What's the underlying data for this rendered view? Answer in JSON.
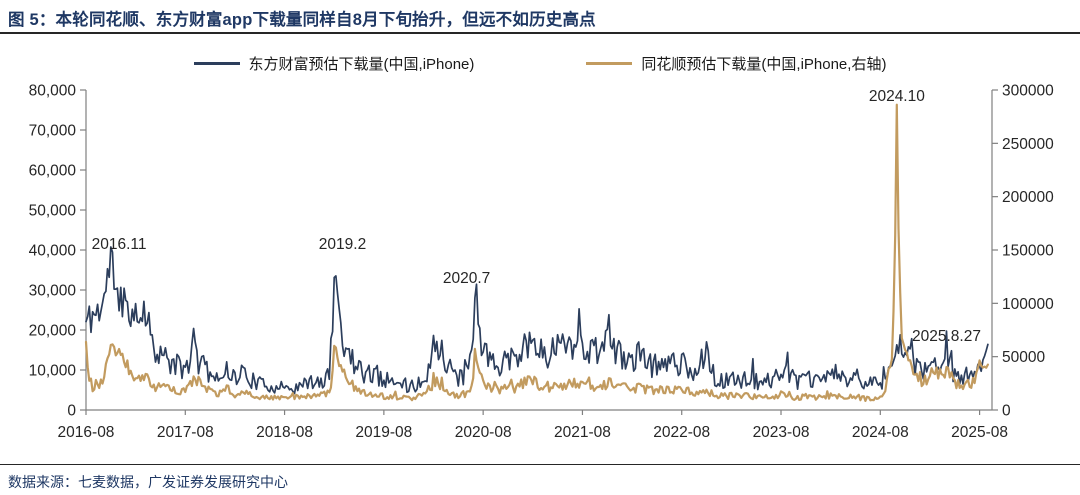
{
  "figure_title": "图 5：本轮同花顺、东方财富app下载量同样自8月下旬抬升，但远不如历史高点",
  "source_note": "数据来源：七麦数据，广发证券发展研究中心",
  "colors": {
    "title_navy": "#1f3864",
    "line_navy": "#2c3e5c",
    "line_gold": "#c29b5f",
    "axis_gray": "#808080",
    "tick_text": "#262626"
  },
  "chart_data": {
    "type": "line",
    "legend_position": "top",
    "grid": false,
    "x_months": [
      "2016-08",
      "2016-09",
      "2016-10",
      "2016-11",
      "2016-12",
      "2017-01",
      "2017-02",
      "2017-03",
      "2017-04",
      "2017-05",
      "2017-06",
      "2017-07",
      "2017-08",
      "2017-09",
      "2017-10",
      "2017-11",
      "2017-12",
      "2018-01",
      "2018-02",
      "2018-03",
      "2018-04",
      "2018-05",
      "2018-06",
      "2018-07",
      "2018-08",
      "2018-09",
      "2018-10",
      "2018-11",
      "2018-12",
      "2019-01",
      "2019-02",
      "2019-03",
      "2019-04",
      "2019-05",
      "2019-06",
      "2019-07",
      "2019-08",
      "2019-09",
      "2019-10",
      "2019-11",
      "2019-12",
      "2020-01",
      "2020-02",
      "2020-03",
      "2020-04",
      "2020-05",
      "2020-06",
      "2020-07",
      "2020-08",
      "2020-09",
      "2020-10",
      "2020-11",
      "2020-12",
      "2021-01",
      "2021-02",
      "2021-03",
      "2021-04",
      "2021-05",
      "2021-06",
      "2021-07",
      "2021-08",
      "2021-09",
      "2021-10",
      "2021-11",
      "2021-12",
      "2022-01",
      "2022-02",
      "2022-03",
      "2022-04",
      "2022-05",
      "2022-06",
      "2022-07",
      "2022-08",
      "2022-09",
      "2022-10",
      "2022-11",
      "2022-12",
      "2023-01",
      "2023-02",
      "2023-03",
      "2023-04",
      "2023-05",
      "2023-06",
      "2023-07",
      "2023-08",
      "2023-09",
      "2023-10",
      "2023-11",
      "2023-12",
      "2024-01",
      "2024-02",
      "2024-03",
      "2024-04",
      "2024-05",
      "2024-06",
      "2024-07",
      "2024-08",
      "2024-09",
      "2024-10",
      "2024-11",
      "2024-12",
      "2025-01",
      "2025-02",
      "2025-03",
      "2025-04",
      "2025-05",
      "2025-06",
      "2025-07",
      "2025-08",
      "2025-09"
    ],
    "x_tick_labels": [
      "2016-08",
      "2017-08",
      "2018-08",
      "2019-08",
      "2020-08",
      "2021-08",
      "2022-08",
      "2023-08",
      "2024-08",
      "2025-08"
    ],
    "left_axis": {
      "min": 0,
      "max": 80000,
      "step": 10000,
      "tick_labels": [
        "0",
        "10,000",
        "20,000",
        "30,000",
        "40,000",
        "50,000",
        "60,000",
        "70,000",
        "80,000"
      ]
    },
    "right_axis": {
      "min": 0,
      "max": 300000,
      "step": 50000,
      "tick_labels": [
        "0",
        "50000",
        "100000",
        "150000",
        "200000",
        "250000",
        "300000"
      ]
    },
    "series": [
      {
        "name": "东方财富预估下载量(中国,iPhone)",
        "axis": "left",
        "color": "#2c3e5c",
        "seed": 11,
        "noise_amp": 0.28,
        "noise_cap": 16000,
        "floor": 1800,
        "values": [
          22000,
          24000,
          26000,
          37000,
          28000,
          27000,
          22000,
          26000,
          18000,
          14000,
          12000,
          11000,
          10000,
          15000,
          11000,
          9000,
          8000,
          10500,
          8000,
          9500,
          7500,
          6500,
          6000,
          5500,
          6000,
          5500,
          6000,
          7000,
          6500,
          8000,
          35000,
          18000,
          13000,
          10000,
          9000,
          8500,
          8000,
          7000,
          6000,
          5500,
          6500,
          8000,
          15000,
          16000,
          10000,
          7000,
          10000,
          28000,
          14000,
          12000,
          11000,
          12000,
          13000,
          17000,
          18000,
          14000,
          14500,
          16000,
          17500,
          17000,
          16000,
          15000,
          14000,
          21500,
          14000,
          13500,
          12500,
          13500,
          11500,
          11000,
          12000,
          12500,
          11500,
          10000,
          9500,
          17000,
          8000,
          7000,
          7500,
          7200,
          8200,
          7200,
          6800,
          7800,
          9500,
          8500,
          7000,
          8000,
          7000,
          7500,
          10000,
          8500,
          7200,
          8800,
          7000,
          6500,
          6800,
          9000,
          19500,
          14000,
          11000,
          9000,
          10000,
          11000,
          12500,
          8500,
          8000,
          9000,
          12500,
          13000
        ]
      },
      {
        "name": "同花顺预估下载量(中国,iPhone,右轴)",
        "axis": "right",
        "color": "#c29b5f",
        "seed": 23,
        "noise_amp": 0.22,
        "noise_cap": 26000,
        "floor": 5000,
        "values": [
          62000,
          22000,
          28000,
          58000,
          52000,
          42000,
          28000,
          33000,
          24000,
          20000,
          22000,
          18000,
          20000,
          30000,
          24000,
          18000,
          15000,
          20000,
          15000,
          17000,
          14000,
          13000,
          12000,
          11000,
          12000,
          11000,
          12500,
          13500,
          12500,
          16000,
          62000,
          35000,
          24000,
          18000,
          15000,
          14000,
          13000,
          12000,
          11000,
          10500,
          12000,
          14000,
          26000,
          24000,
          16000,
          13000,
          16000,
          52000,
          26000,
          21000,
          19000,
          20000,
          21000,
          26000,
          27000,
          23000,
          22000,
          23000,
          24000,
          25000,
          24000,
          23000,
          22000,
          25000,
          23000,
          21000,
          20000,
          21000,
          19000,
          18000,
          19000,
          19000,
          18000,
          16000,
          15000,
          17000,
          14000,
          13000,
          13500,
          13000,
          13500,
          12500,
          12000,
          12500,
          14000,
          13000,
          11500,
          12500,
          11500,
          12000,
          13500,
          12500,
          11500,
          12500,
          11000,
          10500,
          11000,
          35000,
          285000,
          55000,
          38000,
          28000,
          30000,
          33000,
          36000,
          26000,
          24000,
          26000,
          38000,
          42000
        ]
      }
    ],
    "annotations": [
      {
        "label": "2016.11",
        "anchor_month": "2016-12",
        "y_left": 41500
      },
      {
        "label": "2019.2",
        "anchor_month": "2019-03",
        "y_left": 41500
      },
      {
        "label": "2020.7",
        "anchor_month": "2020-06",
        "y_left": 33000
      },
      {
        "label": "2024.10",
        "anchor_month": "2024-10",
        "y_left": 78500
      },
      {
        "label": "2025.8.27",
        "anchor_month": "2025-04",
        "y_left": 18500
      }
    ]
  }
}
